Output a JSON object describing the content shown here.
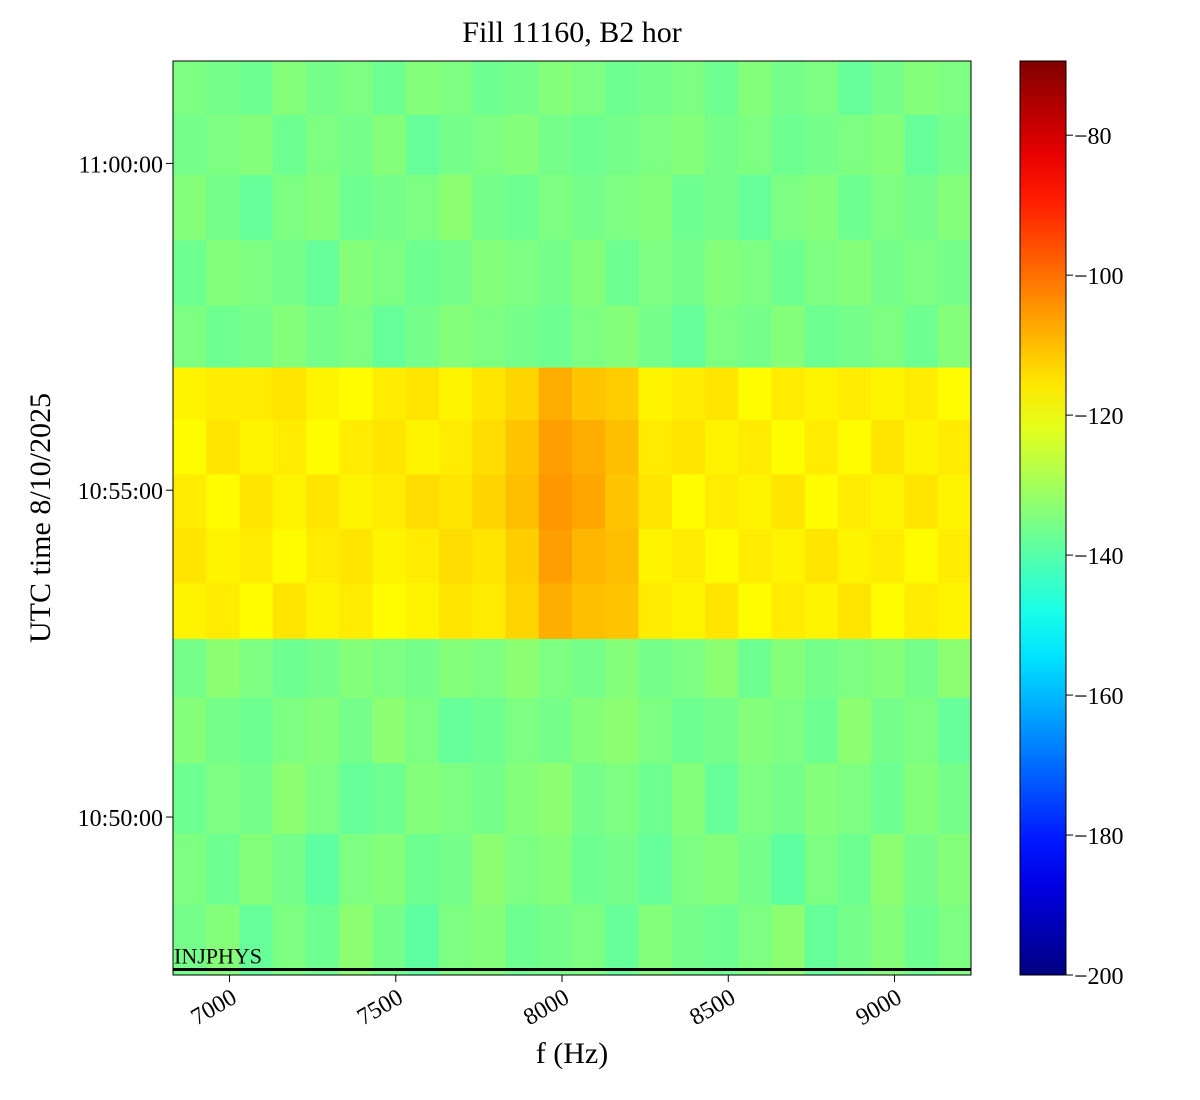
{
  "chart_data": {
    "type": "heatmap",
    "title": "Fill 11160, B2 hor",
    "x_label": "f (Hz)",
    "y_label": "UTC time 8/10/2025",
    "colormap": "jet",
    "xlim": [
      6830,
      9230
    ],
    "xticks": [
      7000,
      7500,
      8000,
      8500,
      9000
    ],
    "ylim": [
      38855,
      39694
    ],
    "yticks": [
      {
        "value": 39000,
        "label": "10:50:00"
      },
      {
        "value": 39300,
        "label": "10:55:00"
      },
      {
        "value": 39600,
        "label": "11:00:00"
      }
    ],
    "clim": [
      -200,
      -69.4
    ],
    "cticks": [
      {
        "value": -200,
        "label": "−200"
      },
      {
        "value": -180,
        "label": "−180"
      },
      {
        "value": -160,
        "label": "−160"
      },
      {
        "value": -140,
        "label": "−140"
      },
      {
        "value": -120,
        "label": "−120"
      },
      {
        "value": -100,
        "label": "−100"
      },
      {
        "value": -80,
        "label": "−80"
      }
    ],
    "xbins": [
      6830,
      6930,
      7030,
      7130,
      7230,
      7330,
      7430,
      7530,
      7630,
      7730,
      7830,
      7930,
      8030,
      8130,
      8230,
      8330,
      8430,
      8530,
      8630,
      8730,
      8830,
      8930,
      9030,
      9130,
      9230
    ],
    "ybins": [
      38855,
      38920,
      38985,
      39050,
      39110,
      39164,
      39215,
      39265,
      39315,
      39365,
      39413,
      39470,
      39530,
      39590,
      39645,
      39694
    ],
    "values": [
      [
        -136,
        -134,
        -138,
        -135,
        -137,
        -133,
        -136,
        -139,
        -135,
        -134,
        -137,
        -136,
        -135,
        -138,
        -134,
        -136,
        -137,
        -135,
        -133,
        -138,
        -136,
        -134,
        -137,
        -135
      ],
      [
        -135,
        -137,
        -134,
        -136,
        -139,
        -135,
        -134,
        -137,
        -136,
        -133,
        -135,
        -134,
        -137,
        -136,
        -138,
        -135,
        -134,
        -136,
        -139,
        -135,
        -137,
        -133,
        -136,
        -134
      ],
      [
        -137,
        -135,
        -136,
        -133,
        -135,
        -138,
        -137,
        -134,
        -135,
        -136,
        -134,
        -133,
        -136,
        -135,
        -137,
        -134,
        -138,
        -135,
        -136,
        -134,
        -135,
        -137,
        -134,
        -136
      ],
      [
        -134,
        -136,
        -137,
        -135,
        -134,
        -136,
        -133,
        -135,
        -138,
        -137,
        -135,
        -136,
        -134,
        -133,
        -135,
        -137,
        -136,
        -134,
        -135,
        -137,
        -133,
        -136,
        -135,
        -138
      ],
      [
        -136,
        -133,
        -135,
        -137,
        -136,
        -134,
        -135,
        -136,
        -134,
        -135,
        -133,
        -135,
        -136,
        -134,
        -136,
        -135,
        -133,
        -137,
        -134,
        -136,
        -135,
        -134,
        -136,
        -133
      ],
      [
        -117,
        -116,
        -118,
        -115,
        -117,
        -116,
        -118,
        -117,
        -115,
        -116,
        -113,
        -108,
        -110,
        -111,
        -116,
        -117,
        -115,
        -118,
        -116,
        -117,
        -115,
        -118,
        -116,
        -117
      ],
      [
        -115,
        -117,
        -116,
        -118,
        -116,
        -115,
        -117,
        -116,
        -114,
        -115,
        -112,
        -106,
        -109,
        -110,
        -117,
        -116,
        -118,
        -116,
        -117,
        -115,
        -117,
        -116,
        -118,
        -116
      ],
      [
        -116,
        -118,
        -115,
        -117,
        -115,
        -117,
        -116,
        -114,
        -115,
        -113,
        -110,
        -105,
        -107,
        -111,
        -115,
        -118,
        -116,
        -117,
        -115,
        -118,
        -116,
        -117,
        -115,
        -117
      ],
      [
        -118,
        -115,
        -117,
        -116,
        -118,
        -116,
        -115,
        -117,
        -116,
        -114,
        -111,
        -106,
        -108,
        -110,
        -116,
        -115,
        -117,
        -116,
        -118,
        -116,
        -118,
        -115,
        -117,
        -116
      ],
      [
        -117,
        -116,
        -116,
        -115,
        -117,
        -118,
        -116,
        -115,
        -117,
        -115,
        -113,
        -108,
        -111,
        -112,
        -117,
        -116,
        -115,
        -118,
        -116,
        -117,
        -116,
        -117,
        -116,
        -118
      ],
      [
        -135,
        -137,
        -136,
        -134,
        -136,
        -135,
        -138,
        -136,
        -134,
        -135,
        -136,
        -137,
        -135,
        -134,
        -136,
        -138,
        -135,
        -136,
        -134,
        -137,
        -136,
        -135,
        -137,
        -134
      ],
      [
        -137,
        -134,
        -135,
        -136,
        -138,
        -134,
        -135,
        -137,
        -136,
        -134,
        -135,
        -136,
        -134,
        -137,
        -135,
        -136,
        -134,
        -135,
        -137,
        -135,
        -134,
        -136,
        -135,
        -136
      ],
      [
        -134,
        -136,
        -138,
        -135,
        -134,
        -137,
        -136,
        -135,
        -133,
        -136,
        -137,
        -135,
        -136,
        -135,
        -134,
        -137,
        -136,
        -138,
        -135,
        -134,
        -137,
        -135,
        -136,
        -134
      ],
      [
        -136,
        -135,
        -134,
        -137,
        -135,
        -136,
        -134,
        -138,
        -136,
        -135,
        -134,
        -136,
        -137,
        -136,
        -135,
        -134,
        -136,
        -135,
        -137,
        -136,
        -135,
        -134,
        -138,
        -136
      ],
      [
        -135,
        -136,
        -137,
        -134,
        -136,
        -135,
        -137,
        -134,
        -135,
        -137,
        -136,
        -134,
        -135,
        -137,
        -136,
        -135,
        -137,
        -134,
        -136,
        -135,
        -138,
        -136,
        -134,
        -135
      ]
    ],
    "annotations": [
      {
        "text": "INJPHYS",
        "y": 38860
      }
    ]
  }
}
